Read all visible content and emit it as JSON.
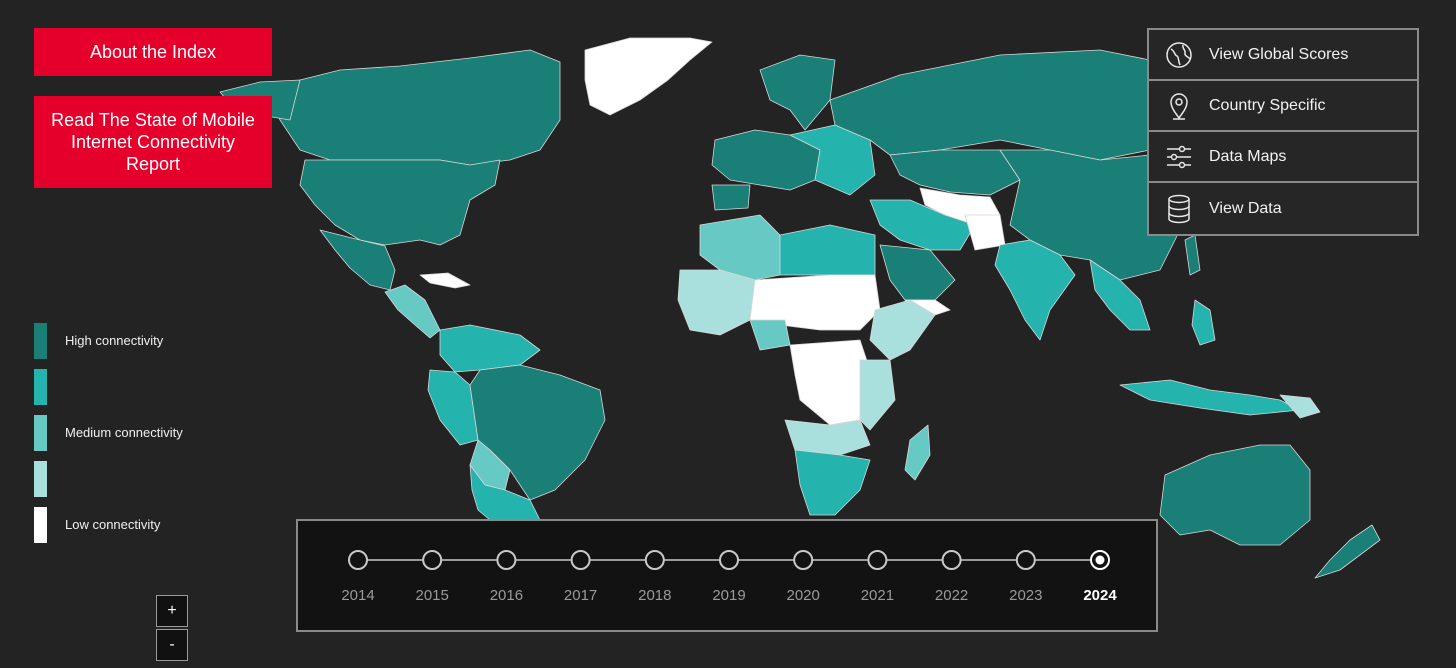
{
  "buttons": {
    "about": "About the Index",
    "report": "Read The State of Mobile Internet Connectivity Report"
  },
  "menu": [
    {
      "label": "View Global Scores",
      "icon": "globe-icon"
    },
    {
      "label": "Country Specific",
      "icon": "location-pin-icon"
    },
    {
      "label": "Data Maps",
      "icon": "sliders-icon"
    },
    {
      "label": "View Data",
      "icon": "database-icon"
    }
  ],
  "legend": {
    "labels": [
      "High connectivity",
      "",
      "Medium connectivity",
      "",
      "Low connectivity"
    ],
    "colors": [
      "#1a7f76",
      "#25b3ae",
      "#66c9c4",
      "#a9e0de",
      "#ffffff"
    ]
  },
  "zoom": {
    "in": "+",
    "out": "-"
  },
  "timeline": {
    "years": [
      "2014",
      "2015",
      "2016",
      "2017",
      "2018",
      "2019",
      "2020",
      "2021",
      "2022",
      "2023",
      "2024"
    ],
    "selected": "2024"
  },
  "map": {
    "ocean_color": "#232323",
    "border_color": "#d7d7d7"
  }
}
